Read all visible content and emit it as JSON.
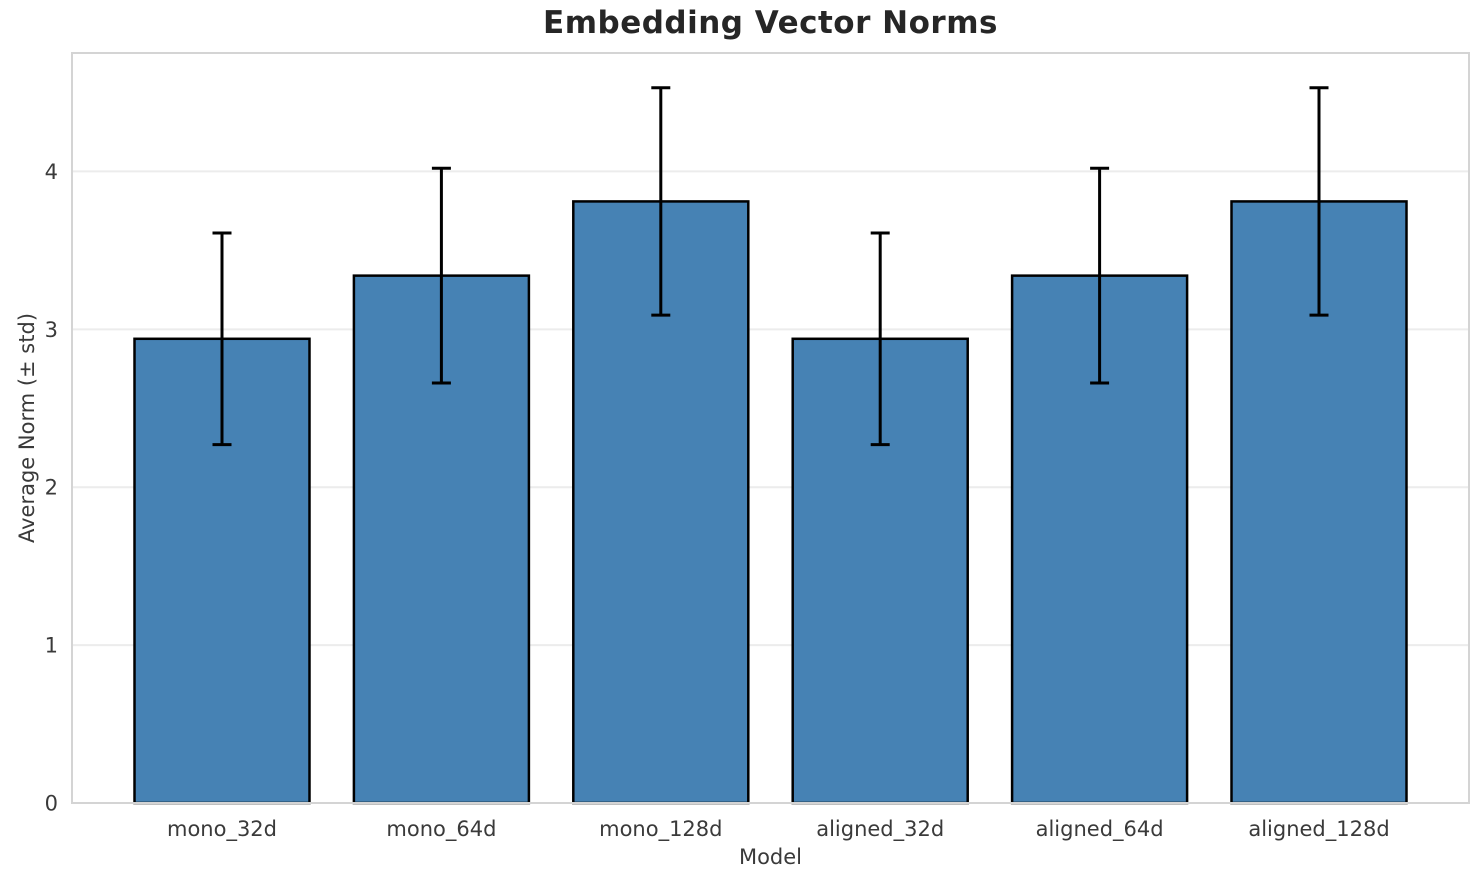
{
  "chart_data": {
    "type": "bar",
    "title": "Embedding Vector Norms",
    "xlabel": "Model",
    "ylabel": "Average Norm (± std)",
    "categories": [
      "mono_32d",
      "mono_64d",
      "mono_128d",
      "aligned_32d",
      "aligned_64d",
      "aligned_128d"
    ],
    "values": [
      2.94,
      3.34,
      3.81,
      2.94,
      3.34,
      3.81
    ],
    "errors": [
      0.67,
      0.68,
      0.72,
      0.67,
      0.68,
      0.72
    ],
    "yticks": [
      0,
      1,
      2,
      3,
      4
    ],
    "ylim": [
      0,
      4.75
    ],
    "grid": true,
    "legend": null,
    "colors": {
      "bar_fill": "#4682B4",
      "bar_edge": "#000000",
      "error_bar": "#000000",
      "grid_line": "#ECECEC",
      "spine": "#D4D4D4",
      "tick_label": "#3a3a3a",
      "title_text": "#262626",
      "background": "#ffffff"
    }
  }
}
